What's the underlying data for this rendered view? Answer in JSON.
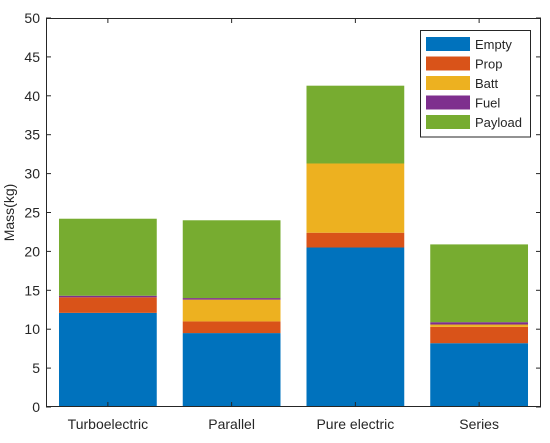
{
  "chart_data": {
    "type": "bar",
    "stacked": true,
    "categories": [
      "Turboelectric",
      "Parallel",
      "Pure electric",
      "Series"
    ],
    "series": [
      {
        "name": "Empty",
        "color": "#0072BD",
        "values": [
          12.1,
          9.5,
          20.5,
          8.2
        ]
      },
      {
        "name": "Prop",
        "color": "#D95319",
        "values": [
          2.0,
          1.5,
          1.9,
          2.1
        ]
      },
      {
        "name": "Batt",
        "color": "#EDB120",
        "values": [
          0.0,
          2.8,
          8.9,
          0.3
        ]
      },
      {
        "name": "Fuel",
        "color": "#7E2F8E",
        "values": [
          0.2,
          0.2,
          0.0,
          0.3
        ]
      },
      {
        "name": "Payload",
        "color": "#77AC30",
        "values": [
          9.9,
          10.0,
          10.0,
          10.0
        ]
      }
    ],
    "title": "",
    "xlabel": "",
    "ylabel": "Mass(kg)",
    "ylim": [
      0,
      50
    ],
    "yticks": [
      0,
      5,
      10,
      15,
      20,
      25,
      30,
      35,
      40,
      45,
      50
    ],
    "grid": false,
    "legend": "top-right"
  }
}
